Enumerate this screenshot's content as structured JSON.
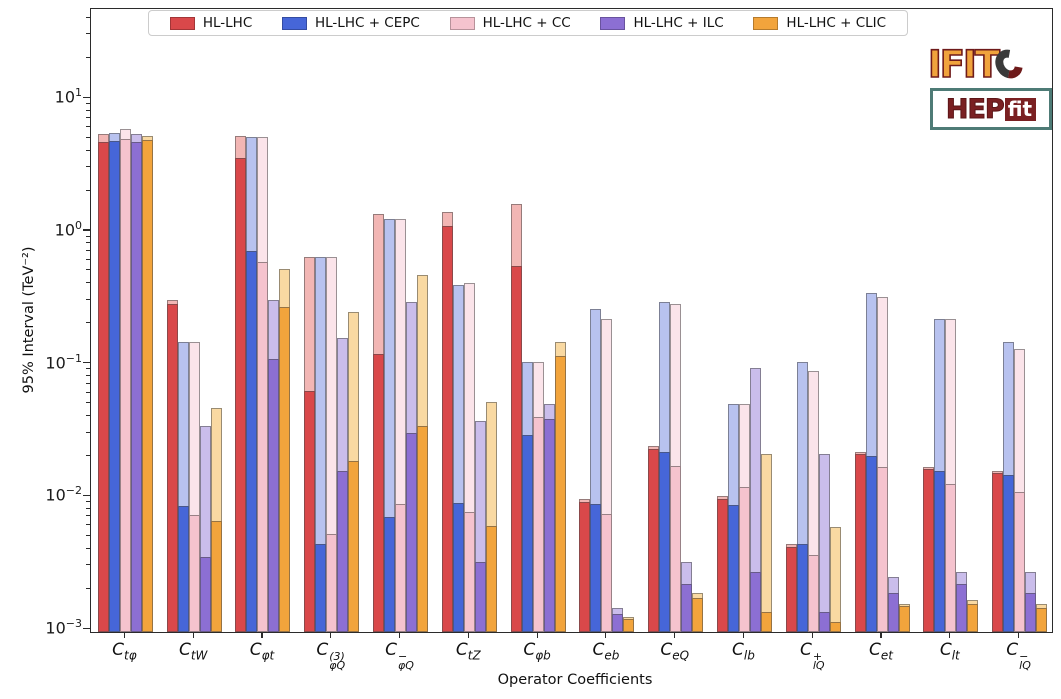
{
  "figure": {
    "x_axis_title": "Operator Coefficients",
    "y_axis_title": "95% Interval (TeV⁻²)",
    "logos": {
      "ifit": "IFIT",
      "hep": "HEP",
      "fit": "fit"
    }
  },
  "chart_data": {
    "type": "bar",
    "scale_y": "log",
    "grid": false,
    "legend_position": "top-center",
    "ylim": [
      0.00092,
      47
    ],
    "y_tick_exponents": [
      1,
      0,
      -1,
      -2,
      -3
    ],
    "bar_style": "each bar has a solid (marginalised) lower part and a translucent (individual) full-height part",
    "categories": [
      {
        "base": "C",
        "sub": "tφ",
        "sup": ""
      },
      {
        "base": "C",
        "sub": "tW",
        "sup": ""
      },
      {
        "base": "C",
        "sub": "φt",
        "sup": ""
      },
      {
        "base": "C",
        "sub": "φQ",
        "sup": "(3)"
      },
      {
        "base": "C",
        "sub": "φQ",
        "sup": "−"
      },
      {
        "base": "C",
        "sub": "tZ",
        "sup": ""
      },
      {
        "base": "C",
        "sub": "φb",
        "sup": ""
      },
      {
        "base": "C",
        "sub": "eb",
        "sup": ""
      },
      {
        "base": "C",
        "sub": "eQ",
        "sup": ""
      },
      {
        "base": "C",
        "sub": "lb",
        "sup": ""
      },
      {
        "base": "C",
        "sub": "lQ",
        "sup": "+"
      },
      {
        "base": "C",
        "sub": "et",
        "sup": ""
      },
      {
        "base": "C",
        "sub": "lt",
        "sup": ""
      },
      {
        "base": "C",
        "sub": "lQ",
        "sup": "−"
      }
    ],
    "series": [
      {
        "name": "HL-LHC",
        "color": "#d9484a",
        "color_light": "#f2b6b4",
        "solid": [
          4.5,
          0.27,
          3.4,
          0.06,
          0.115,
          1.05,
          0.53,
          0.0088,
          0.022,
          0.0092,
          0.004,
          0.02,
          0.0155,
          0.0145
        ],
        "total": [
          5.2,
          0.29,
          5.0,
          0.62,
          1.3,
          1.35,
          1.55,
          0.0092,
          0.023,
          0.0097,
          0.0042,
          0.021,
          0.016,
          0.015
        ]
      },
      {
        "name": "HL-LHC + CEPC",
        "color": "#4666d8",
        "color_light": "#b8c2ef",
        "solid": [
          4.6,
          0.0082,
          0.68,
          0.0042,
          0.0068,
          0.0086,
          0.028,
          0.0085,
          0.021,
          0.0083,
          0.0042,
          0.0195,
          0.015,
          0.014
        ],
        "total": [
          5.3,
          0.14,
          4.9,
          0.62,
          1.2,
          0.38,
          0.1,
          0.25,
          0.28,
          0.048,
          0.1,
          0.33,
          0.21,
          0.14
        ]
      },
      {
        "name": "HL-LHC + CC",
        "color": "#f5c3ce",
        "color_light": "#fbe4ea",
        "solid": [
          4.8,
          0.007,
          0.56,
          0.005,
          0.0085,
          0.0074,
          0.038,
          0.0071,
          0.0165,
          0.0113,
          0.0035,
          0.016,
          0.012,
          0.0105
        ],
        "total": [
          5.7,
          0.14,
          4.9,
          0.62,
          1.2,
          0.39,
          0.1,
          0.21,
          0.27,
          0.048,
          0.085,
          0.31,
          0.21,
          0.125
        ]
      },
      {
        "name": "HL-LHC + ILC",
        "color": "#8c6fd3",
        "color_light": "#cabdeb",
        "solid": [
          4.5,
          0.0034,
          0.105,
          0.015,
          0.029,
          0.0031,
          0.037,
          0.00125,
          0.0021,
          0.0026,
          0.0013,
          0.0018,
          0.0021,
          0.0018
        ],
        "total": [
          5.2,
          0.033,
          0.29,
          0.15,
          0.28,
          0.036,
          0.048,
          0.0014,
          0.0031,
          0.09,
          0.02,
          0.0024,
          0.0026,
          0.0026
        ]
      },
      {
        "name": "HL-LHC + CLIC",
        "color": "#f2a43c",
        "color_light": "#f9d9a2",
        "solid": [
          4.7,
          0.0063,
          0.26,
          0.018,
          0.033,
          0.0058,
          0.11,
          0.00115,
          0.00165,
          0.0013,
          0.0011,
          0.00145,
          0.0015,
          0.0014
        ],
        "total": [
          5.0,
          0.045,
          0.5,
          0.235,
          0.45,
          0.05,
          0.14,
          0.0012,
          0.0018,
          0.02,
          0.0057,
          0.0015,
          0.0016,
          0.0015
        ]
      }
    ]
  }
}
